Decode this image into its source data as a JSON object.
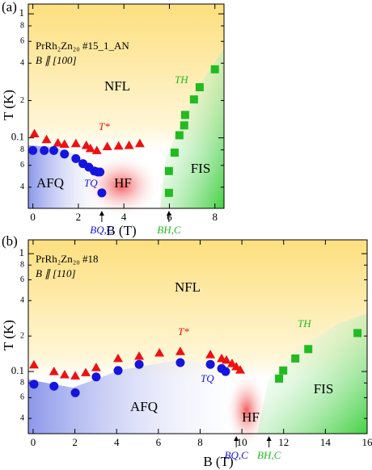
{
  "chart_data": [
    {
      "type": "scatter",
      "panel": "(a)",
      "sample": "PrRh₂Zn₂₀ #15_1_AN",
      "field": "B ∥ [100]",
      "xlabel": "B (T)",
      "ylabel": "T (K)",
      "yscale": "log",
      "xlim": [
        -0.2,
        8.4
      ],
      "xticks": [
        0,
        2,
        4,
        6,
        8
      ],
      "ylim": [
        0.027,
        1.2
      ],
      "yticks": [
        {
          "value": 0.04,
          "label": "4"
        },
        {
          "value": 0.06,
          "label": "6"
        },
        {
          "value": 0.08,
          "label": "8"
        },
        0.1,
        {
          "value": 0.2,
          "label": "2"
        },
        {
          "value": 0.4,
          "label": "4"
        },
        {
          "value": 0.6,
          "label": "6"
        },
        {
          "value": 0.8,
          "label": "8"
        },
        1
      ],
      "regions": [
        "NFL",
        "AFQ",
        "HF",
        "FIS"
      ],
      "annotations": [
        {
          "text": "BQ,C",
          "x": 3.03
        },
        {
          "text": "BH,C",
          "x": 5.98
        }
      ],
      "series": [
        {
          "name": "T*",
          "marker": "triangle",
          "color": "#ee1111",
          "x": [
            0.07,
            0.6,
            1.1,
            1.39,
            1.89,
            2.35,
            2.53,
            2.81,
            3.27,
            3.77,
            4.23,
            4.7
          ],
          "values": [
            0.108,
            0.097,
            0.091,
            0.089,
            0.09,
            0.087,
            0.082,
            0.079,
            0.085,
            0.086,
            0.087,
            0.09
          ]
        },
        {
          "name": "TQ",
          "marker": "circle",
          "color": "#1515dd",
          "x": [
            0,
            0.5,
            0.92,
            1.39,
            1.89,
            2.2,
            2.46,
            2.7,
            2.85,
            2.95,
            3.03
          ],
          "values": [
            0.079,
            0.079,
            0.079,
            0.074,
            0.068,
            0.062,
            0.058,
            0.054,
            0.053,
            0.053,
            0.036
          ]
        },
        {
          "name": "TH",
          "marker": "square",
          "color": "#22bb22",
          "x": [
            5.98,
            5.98,
            6.23,
            6.44,
            6.65,
            6.69,
            7.08,
            7.33,
            8.0
          ],
          "values": [
            0.036,
            0.054,
            0.076,
            0.105,
            0.126,
            0.153,
            0.204,
            0.256,
            0.357
          ]
        }
      ]
    },
    {
      "type": "scatter",
      "panel": "(b)",
      "sample": "PrRh₂Zn₂₀ #18",
      "field": "B ∥ [110]",
      "xlabel": "B (T)",
      "ylabel": "T (K)",
      "yscale": "log",
      "xlim": [
        -0.23,
        16
      ],
      "xticks": [
        0,
        2,
        4,
        6,
        8,
        10,
        12,
        14,
        16
      ],
      "ylim": [
        0.0297,
        1.31
      ],
      "yticks": [
        {
          "value": 0.04,
          "label": "4"
        },
        {
          "value": 0.06,
          "label": "6"
        },
        {
          "value": 0.08,
          "label": "8"
        },
        0.1,
        {
          "value": 0.2,
          "label": "2"
        },
        {
          "value": 0.4,
          "label": "4"
        },
        {
          "value": 0.6,
          "label": "6"
        },
        {
          "value": 0.8,
          "label": "8"
        },
        1
      ],
      "regions": [
        "NFL",
        "AFQ",
        "HF",
        "FIS"
      ],
      "annotations": [
        {
          "text": "BQ,C",
          "x": 9.73
        },
        {
          "text": "BH,C",
          "x": 11.3
        }
      ],
      "series": [
        {
          "name": "T*",
          "marker": "triangle",
          "color": "#ee1111",
          "x": [
            0.04,
            1.0,
            1.51,
            2.02,
            2.52,
            3.02,
            4.07,
            5.08,
            6.05,
            7.05,
            8.49,
            9.03,
            9.26,
            9.53,
            9.73,
            9.92
          ],
          "values": [
            0.114,
            0.1,
            0.094,
            0.092,
            0.098,
            0.108,
            0.129,
            0.135,
            0.144,
            0.148,
            0.139,
            0.129,
            0.125,
            0.117,
            0.11,
            0.103
          ]
        },
        {
          "name": "TQ",
          "marker": "circle",
          "color": "#1515dd",
          "x": [
            0.04,
            1.0,
            2.02,
            3.02,
            4.07,
            5.08,
            7.05,
            8.49,
            9.03,
            9.22
          ],
          "values": [
            0.078,
            0.075,
            0.066,
            0.09,
            0.102,
            0.115,
            0.119,
            0.115,
            0.106,
            0.1
          ]
        },
        {
          "name": "TH",
          "marker": "square",
          "color": "#22bb22",
          "x": [
            11.78,
            11.98,
            12.56,
            13.18,
            15.54
          ],
          "values": [
            0.087,
            0.102,
            0.129,
            0.155,
            0.212
          ]
        }
      ]
    }
  ]
}
